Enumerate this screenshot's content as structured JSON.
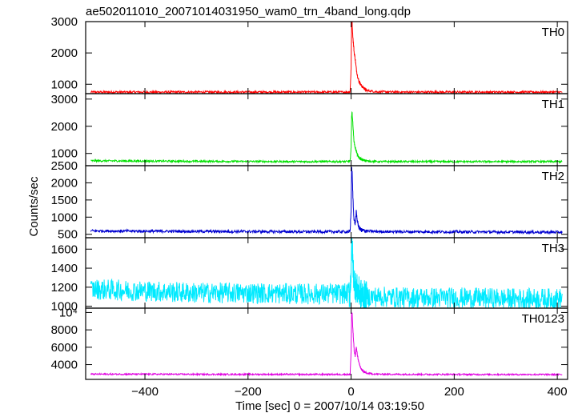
{
  "chart_data": {
    "type": "line",
    "title": "ae502011010_20071014031950_wam0_trn_4band_long.qdp",
    "xlabel": "Time [sec] 0 = 2007/10/14 03:19:50",
    "ylabel": "Counts/sec",
    "xlim": [
      -515,
      420
    ],
    "xticks": [
      -400,
      -200,
      0,
      200,
      400
    ],
    "xtick_labels": [
      "−400",
      "−200",
      "0",
      "200",
      "400"
    ],
    "grid": false,
    "panels": [
      {
        "name": "TH0",
        "color": "#ff0000",
        "ylim": [
          700,
          3000
        ],
        "yticks": [
          1000,
          2000,
          3000
        ],
        "ytick_labels": [
          "1000",
          "2000",
          "3000"
        ],
        "baseline": 700,
        "noise": 35,
        "x": [
          -505,
          -400,
          -300,
          -200,
          -100,
          -10,
          -2,
          0,
          1,
          2,
          3,
          4,
          5,
          6,
          8,
          10,
          12,
          15,
          20,
          30,
          50,
          100,
          200,
          300,
          410
        ],
        "y": [
          750,
          750,
          750,
          750,
          750,
          750,
          760,
          1500,
          3000,
          2950,
          2600,
          2400,
          2200,
          2000,
          1800,
          1500,
          1300,
          1100,
          950,
          800,
          760,
          750,
          750,
          750,
          750
        ]
      },
      {
        "name": "TH1",
        "color": "#00e000",
        "ylim": [
          550,
          3200
        ],
        "yticks": [
          1000,
          2000,
          3000
        ],
        "ytick_labels": [
          "1000",
          "2000",
          "3000"
        ],
        "baseline": 650,
        "noise": 35,
        "x": [
          -505,
          -400,
          -300,
          -200,
          -100,
          -10,
          -2,
          0,
          1,
          2,
          3,
          4,
          5,
          6,
          8,
          10,
          12,
          15,
          20,
          30,
          50,
          100,
          200,
          300,
          410
        ],
        "y": [
          730,
          720,
          710,
          705,
          700,
          700,
          710,
          1200,
          2400,
          2500,
          2200,
          1900,
          1600,
          1400,
          1200,
          1100,
          950,
          850,
          780,
          720,
          700,
          700,
          700,
          700,
          700
        ]
      },
      {
        "name": "TH2",
        "color": "#0000d0",
        "ylim": [
          400,
          2500
        ],
        "yticks": [
          500,
          1000,
          1500,
          2000,
          2500
        ],
        "ytick_labels": [
          "500",
          "1000",
          "1500",
          "2000",
          "2500"
        ],
        "baseline": 560,
        "noise": 40,
        "x": [
          -505,
          -400,
          -300,
          -200,
          -100,
          -10,
          -2,
          0,
          1,
          2,
          3,
          4,
          5,
          6,
          8,
          10,
          12,
          15,
          20,
          30,
          50,
          100,
          200,
          300,
          410
        ],
        "y": [
          600,
          590,
          585,
          580,
          575,
          575,
          580,
          1200,
          2450,
          2300,
          1800,
          1400,
          1100,
          900,
          800,
          1150,
          900,
          700,
          620,
          590,
          580,
          575,
          570,
          565,
          560
        ]
      },
      {
        "name": "TH3",
        "color": "#00eaff",
        "ylim": [
          980,
          1720
        ],
        "yticks": [
          1000,
          1200,
          1400,
          1600
        ],
        "ytick_labels": [
          "1000",
          "1200",
          "1400",
          "1600"
        ],
        "baseline": 1120,
        "noise": 110,
        "x": [
          -505,
          -400,
          -300,
          -200,
          -100,
          -10,
          -2,
          0,
          1,
          2,
          3,
          4,
          5,
          6,
          8,
          10,
          12,
          15,
          20,
          30,
          50,
          100,
          200,
          300,
          410
        ],
        "y": [
          1180,
          1160,
          1140,
          1140,
          1130,
          1130,
          1140,
          1400,
          1700,
          1650,
          1500,
          1400,
          1330,
          1280,
          1220,
          1190,
          1170,
          1150,
          1120,
          1100,
          1100,
          1090,
          1090,
          1080,
          1080
        ]
      },
      {
        "name": "TH0123",
        "color": "#e000e0",
        "ylim": [
          2300,
          10500
        ],
        "yticks": [
          4000,
          6000,
          8000,
          10000
        ],
        "ytick_labels": [
          "4000",
          "6000",
          "8000",
          "10⁴"
        ],
        "baseline": 2850,
        "noise": 90,
        "x": [
          -505,
          -400,
          -300,
          -200,
          -100,
          -10,
          -2,
          0,
          1,
          2,
          3,
          4,
          5,
          6,
          8,
          10,
          12,
          15,
          20,
          30,
          50,
          100,
          200,
          300,
          410
        ],
        "y": [
          2900,
          2900,
          2880,
          2880,
          2870,
          2870,
          2880,
          5500,
          10000,
          9800,
          8500,
          7500,
          6500,
          5600,
          5000,
          6000,
          5200,
          4200,
          3400,
          3000,
          2900,
          2880,
          2870,
          2860,
          2860
        ]
      }
    ]
  }
}
